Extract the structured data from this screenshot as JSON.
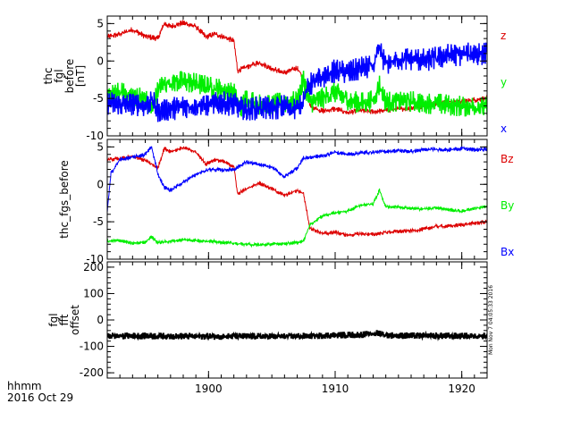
{
  "footer": {
    "time_format": "hhmm",
    "date": "2016 Oct 29"
  },
  "stamp": "Mon Nov  7 04:05:33 2016",
  "chart_data": [
    {
      "type": "line",
      "ylabel": [
        "thc",
        "fgl",
        "before",
        "[nT]"
      ],
      "xlim": [
        1892,
        1922
      ],
      "ylim": [
        -10,
        6
      ],
      "yticks": [
        5,
        0,
        -5,
        -10
      ],
      "xticks": [
        1900,
        1910,
        1920
      ],
      "show_xtick_labels": false,
      "grid": false,
      "legend": "right",
      "series": [
        {
          "name": "z",
          "color": "#dd0000",
          "noise": 0.25,
          "width": 1,
          "points": [
            [
              1892,
              3.2
            ],
            [
              1893,
              3.6
            ],
            [
              1894,
              4.2
            ],
            [
              1895,
              3.3
            ],
            [
              1896,
              3.0
            ],
            [
              1896.5,
              5.0
            ],
            [
              1897,
              4.6
            ],
            [
              1898,
              5.1
            ],
            [
              1899,
              4.6
            ],
            [
              1899.8,
              3.2
            ],
            [
              1900.5,
              3.6
            ],
            [
              1901.2,
              3.2
            ],
            [
              1902,
              2.7
            ],
            [
              1902.3,
              -1.3
            ],
            [
              1903,
              -0.8
            ],
            [
              1904,
              -0.2
            ],
            [
              1905,
              -1.0
            ],
            [
              1906,
              -1.6
            ],
            [
              1907,
              -0.9
            ],
            [
              1907.5,
              -2.3
            ],
            [
              1908,
              -6.0
            ],
            [
              1909,
              -6.7
            ],
            [
              1910,
              -6.4
            ],
            [
              1911,
              -6.9
            ],
            [
              1912,
              -6.6
            ],
            [
              1913,
              -6.8
            ],
            [
              1914,
              -6.6
            ],
            [
              1915,
              -6.4
            ],
            [
              1916,
              -6.3
            ],
            [
              1917,
              -6.0
            ],
            [
              1918,
              -5.6
            ],
            [
              1919,
              -5.5
            ],
            [
              1920,
              -5.4
            ],
            [
              1921,
              -5.2
            ],
            [
              1922,
              -5.0
            ]
          ]
        },
        {
          "name": "y",
          "color": "#00ee00",
          "noise": 0.9,
          "width": 1.5,
          "points": [
            [
              1892,
              -4.8
            ],
            [
              1893,
              -4.2
            ],
            [
              1894,
              -4.6
            ],
            [
              1895,
              -5.0
            ],
            [
              1895.5,
              -6.6
            ],
            [
              1896,
              -4.0
            ],
            [
              1896.5,
              -3.0
            ],
            [
              1897,
              -2.8
            ],
            [
              1898,
              -2.7
            ],
            [
              1899,
              -3.0
            ],
            [
              1900,
              -3.4
            ],
            [
              1901,
              -3.8
            ],
            [
              1902,
              -4.2
            ],
            [
              1902.5,
              -6.3
            ],
            [
              1903,
              -5.0
            ],
            [
              1904,
              -5.8
            ],
            [
              1905,
              -5.7
            ],
            [
              1906,
              -5.6
            ],
            [
              1907,
              -5.4
            ],
            [
              1907.5,
              -2.5
            ],
            [
              1908,
              -5.6
            ],
            [
              1909,
              -5.0
            ],
            [
              1910,
              -4.2
            ],
            [
              1911,
              -5.2
            ],
            [
              1912,
              -5.6
            ],
            [
              1913,
              -5.3
            ],
            [
              1913.5,
              -3.2
            ],
            [
              1914,
              -5.5
            ],
            [
              1915,
              -5.3
            ],
            [
              1916,
              -5.4
            ],
            [
              1917,
              -5.6
            ],
            [
              1918,
              -5.7
            ],
            [
              1919,
              -5.9
            ],
            [
              1920,
              -6.0
            ],
            [
              1921,
              -6.1
            ],
            [
              1922,
              -6.2
            ]
          ]
        },
        {
          "name": "x",
          "color": "#0000ff",
          "noise": 1.0,
          "width": 1.5,
          "points": [
            [
              1892,
              -5.6
            ],
            [
              1893,
              -5.8
            ],
            [
              1894,
              -5.7
            ],
            [
              1895,
              -6.0
            ],
            [
              1895.5,
              -5.2
            ],
            [
              1896,
              -6.6
            ],
            [
              1897,
              -6.4
            ],
            [
              1898,
              -6.1
            ],
            [
              1899,
              -5.9
            ],
            [
              1900,
              -5.9
            ],
            [
              1901,
              -5.6
            ],
            [
              1902,
              -5.8
            ],
            [
              1903,
              -6.6
            ],
            [
              1904,
              -6.2
            ],
            [
              1905,
              -6.4
            ],
            [
              1906,
              -6.0
            ],
            [
              1907,
              -6.4
            ],
            [
              1907.5,
              -5.0
            ],
            [
              1908,
              -3.2
            ],
            [
              1909,
              -2.2
            ],
            [
              1910,
              -1.3
            ],
            [
              1911,
              -1.6
            ],
            [
              1912,
              -1.0
            ],
            [
              1913,
              -0.7
            ],
            [
              1913.5,
              1.5
            ],
            [
              1914,
              -0.4
            ],
            [
              1915,
              0.2
            ],
            [
              1916,
              0.3
            ],
            [
              1917,
              0.1
            ],
            [
              1918,
              0.4
            ],
            [
              1919,
              0.8
            ],
            [
              1920,
              0.9
            ],
            [
              1921,
              1.0
            ],
            [
              1922,
              1.0
            ]
          ]
        }
      ]
    },
    {
      "type": "line",
      "ylabel": [
        "thc_fgs_before"
      ],
      "xlim": [
        1892,
        1922
      ],
      "ylim": [
        -10,
        6
      ],
      "yticks": [
        5,
        0,
        -5,
        -10
      ],
      "xticks": [
        1900,
        1910,
        1920
      ],
      "show_xtick_labels": false,
      "grid": false,
      "legend": "right",
      "series": [
        {
          "name": "Bz",
          "color": "#dd0000",
          "noise": 0.18,
          "width": 1,
          "points": [
            [
              1892,
              3.3
            ],
            [
              1893,
              3.4
            ],
            [
              1894,
              3.7
            ],
            [
              1895,
              3.2
            ],
            [
              1896,
              2.2
            ],
            [
              1896.5,
              4.8
            ],
            [
              1897,
              4.4
            ],
            [
              1898,
              4.9
            ],
            [
              1899,
              4.3
            ],
            [
              1899.8,
              2.7
            ],
            [
              1900.5,
              3.3
            ],
            [
              1901.2,
              3.0
            ],
            [
              1902,
              2.4
            ],
            [
              1902.3,
              -1.3
            ],
            [
              1903,
              -0.6
            ],
            [
              1904,
              0.2
            ],
            [
              1905,
              -0.6
            ],
            [
              1906,
              -1.5
            ],
            [
              1907,
              -0.8
            ],
            [
              1907.5,
              -1.2
            ],
            [
              1908,
              -5.8
            ],
            [
              1909,
              -6.6
            ],
            [
              1910,
              -6.4
            ],
            [
              1911,
              -6.8
            ],
            [
              1912,
              -6.6
            ],
            [
              1913,
              -6.7
            ],
            [
              1914,
              -6.4
            ],
            [
              1915,
              -6.3
            ],
            [
              1916,
              -6.2
            ],
            [
              1917,
              -6.0
            ],
            [
              1918,
              -5.6
            ],
            [
              1919,
              -5.6
            ],
            [
              1920,
              -5.4
            ],
            [
              1921,
              -5.2
            ],
            [
              1922,
              -5.0
            ]
          ]
        },
        {
          "name": "By",
          "color": "#00ee00",
          "noise": 0.15,
          "width": 1,
          "points": [
            [
              1892,
              -7.6
            ],
            [
              1893,
              -7.5
            ],
            [
              1894,
              -7.9
            ],
            [
              1895,
              -7.7
            ],
            [
              1895.5,
              -7.0
            ],
            [
              1896,
              -7.8
            ],
            [
              1897,
              -7.6
            ],
            [
              1898,
              -7.4
            ],
            [
              1899,
              -7.5
            ],
            [
              1900,
              -7.6
            ],
            [
              1901,
              -7.7
            ],
            [
              1902,
              -7.9
            ],
            [
              1903,
              -8.0
            ],
            [
              1904,
              -8.1
            ],
            [
              1905,
              -8.0
            ],
            [
              1906,
              -7.9
            ],
            [
              1907,
              -7.8
            ],
            [
              1907.5,
              -7.6
            ],
            [
              1908,
              -5.4
            ],
            [
              1909,
              -4.2
            ],
            [
              1910,
              -3.8
            ],
            [
              1911,
              -3.6
            ],
            [
              1912,
              -2.8
            ],
            [
              1913,
              -2.6
            ],
            [
              1913.5,
              -0.8
            ],
            [
              1914,
              -3.0
            ],
            [
              1915,
              -3.0
            ],
            [
              1916,
              -3.2
            ],
            [
              1917,
              -3.3
            ],
            [
              1918,
              -3.1
            ],
            [
              1919,
              -3.4
            ],
            [
              1920,
              -3.6
            ],
            [
              1921,
              -3.2
            ],
            [
              1922,
              -3.0
            ]
          ]
        },
        {
          "name": "Bx",
          "color": "#0000ff",
          "noise": 0.18,
          "width": 1,
          "points": [
            [
              1892,
              -3.6
            ],
            [
              1892.3,
              1.5
            ],
            [
              1893,
              3.3
            ],
            [
              1894,
              3.6
            ],
            [
              1895,
              4.0
            ],
            [
              1895.5,
              5.0
            ],
            [
              1896,
              1.4
            ],
            [
              1896.5,
              -0.4
            ],
            [
              1897,
              -0.8
            ],
            [
              1898,
              0.3
            ],
            [
              1899,
              1.3
            ],
            [
              1900,
              2.0
            ],
            [
              1901,
              1.9
            ],
            [
              1902,
              2.0
            ],
            [
              1903,
              3.0
            ],
            [
              1904,
              2.6
            ],
            [
              1905,
              2.3
            ],
            [
              1906,
              1.0
            ],
            [
              1907,
              2.2
            ],
            [
              1907.5,
              3.5
            ],
            [
              1908,
              3.6
            ],
            [
              1909,
              3.8
            ],
            [
              1910,
              4.3
            ],
            [
              1911,
              4.0
            ],
            [
              1912,
              4.2
            ],
            [
              1913,
              4.3
            ],
            [
              1914,
              4.4
            ],
            [
              1915,
              4.5
            ],
            [
              1916,
              4.4
            ],
            [
              1917,
              4.6
            ],
            [
              1918,
              4.7
            ],
            [
              1919,
              4.6
            ],
            [
              1920,
              4.8
            ],
            [
              1921,
              4.6
            ],
            [
              1922,
              4.7
            ]
          ]
        }
      ]
    },
    {
      "type": "line",
      "ylabel": [
        "fgl",
        "fft",
        "offset"
      ],
      "xlim": [
        1892,
        1922
      ],
      "ylim": [
        -220,
        220
      ],
      "yticks": [
        200,
        100,
        0,
        -100,
        -200
      ],
      "xticks": [
        1900,
        1910,
        1920
      ],
      "show_xtick_labels": true,
      "grid": false,
      "legend": "none",
      "series": [
        {
          "name": "",
          "color": "#000000",
          "noise": 8,
          "width": 2,
          "points": [
            [
              1892,
              -60
            ],
            [
              1900,
              -62
            ],
            [
              1907,
              -62
            ],
            [
              1908,
              -60
            ],
            [
              1910,
              -58
            ],
            [
              1912,
              -56
            ],
            [
              1913.5,
              -50
            ],
            [
              1914,
              -58
            ],
            [
              1916,
              -60
            ],
            [
              1918,
              -60
            ],
            [
              1920,
              -61
            ],
            [
              1922,
              -60
            ]
          ]
        }
      ]
    }
  ]
}
